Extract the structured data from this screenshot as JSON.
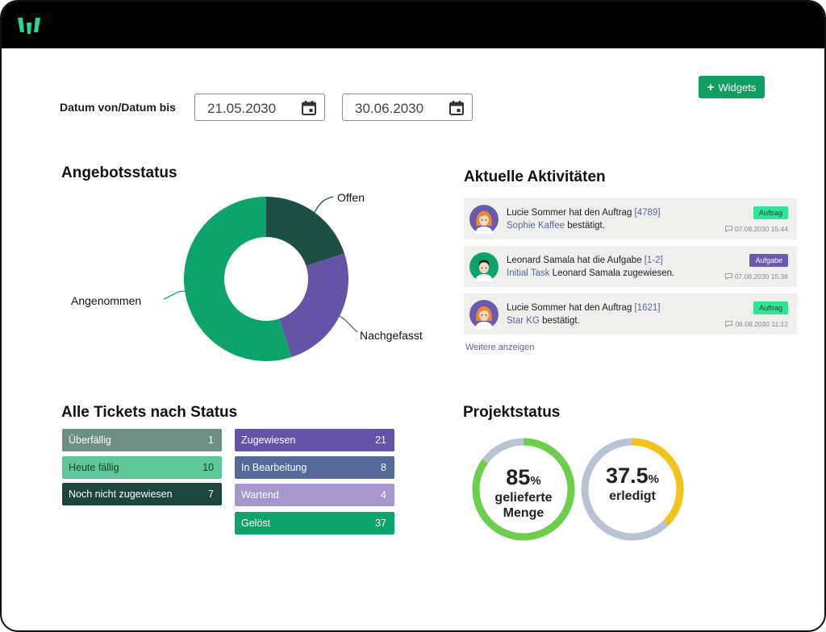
{
  "date_range": {
    "label": "Datum von/Datum bis",
    "from": "21.05.2030",
    "to": "30.06.2030"
  },
  "toolbar": {
    "widgets_label": "Widgets"
  },
  "offer_status": {
    "title": "Angebotsstatus",
    "chart_data": {
      "type": "pie",
      "categories": [
        "Offen",
        "Nachgefasst",
        "Angenommen"
      ],
      "values": [
        20,
        25,
        55
      ],
      "colors": [
        "#1e4f44",
        "#6553a8",
        "#0ca46a"
      ]
    }
  },
  "activities": {
    "title": "Aktuelle Aktivitäten",
    "items": [
      {
        "pre": "Lucie Sommer hat den Auftrag ",
        "ref": "[4789]",
        "link": "Sophie Kaffee",
        "post": " bestätigt.",
        "badge": "Auftrag",
        "time": "07.08.2030 15:44",
        "avatar": "female-avatar-icon"
      },
      {
        "pre": "Leonard Samala hat die Aufgabe ",
        "ref": "[1-2]",
        "link": "Initial Task",
        "post": " Leonard Samala zugewiesen.",
        "badge": "Aufgabe",
        "time": "07.08.2030 15:36",
        "avatar": "male-avatar-icon"
      },
      {
        "pre": "Lucie Sommer hat den Auftrag ",
        "ref": "[1621]",
        "link": "Star KG",
        "post": " bestätigt.",
        "badge": "Auftrag",
        "time": "06.08.2030 11:12",
        "avatar": "female-avatar-icon"
      }
    ],
    "more_label": "Weitere anzeigen"
  },
  "tickets": {
    "title": "Alle Tickets nach Status",
    "left": [
      {
        "label": "Überfällig",
        "count": "1",
        "color": "#6f8f85"
      },
      {
        "label": "Heute fällig",
        "count": "10",
        "color": "#5ec79a"
      },
      {
        "label": "Noch nicht zugewiesen",
        "count": "7",
        "color": "#1b463c"
      }
    ],
    "right": [
      {
        "label": "Zugewiesen",
        "count": "21",
        "color": "#6553a8"
      },
      {
        "label": "In Bearbeitung",
        "count": "8",
        "color": "#55699a"
      },
      {
        "label": "Wartend",
        "count": "4",
        "color": "#a597cd"
      },
      {
        "label": "Gelöst",
        "count": "37",
        "color": "#0ca46a"
      }
    ]
  },
  "project_status": {
    "title": "Projektstatus",
    "rings": [
      {
        "value": "85",
        "unit": "%",
        "line1": "gelieferte",
        "line2": "Menge",
        "fraction": 0.85,
        "color": "#6ccf4a"
      },
      {
        "value": "37.5",
        "unit": "%",
        "line1": "erledigt",
        "line2": "",
        "fraction": 0.375,
        "color": "#f2c318"
      }
    ],
    "track_color": "#b9c3d6"
  }
}
